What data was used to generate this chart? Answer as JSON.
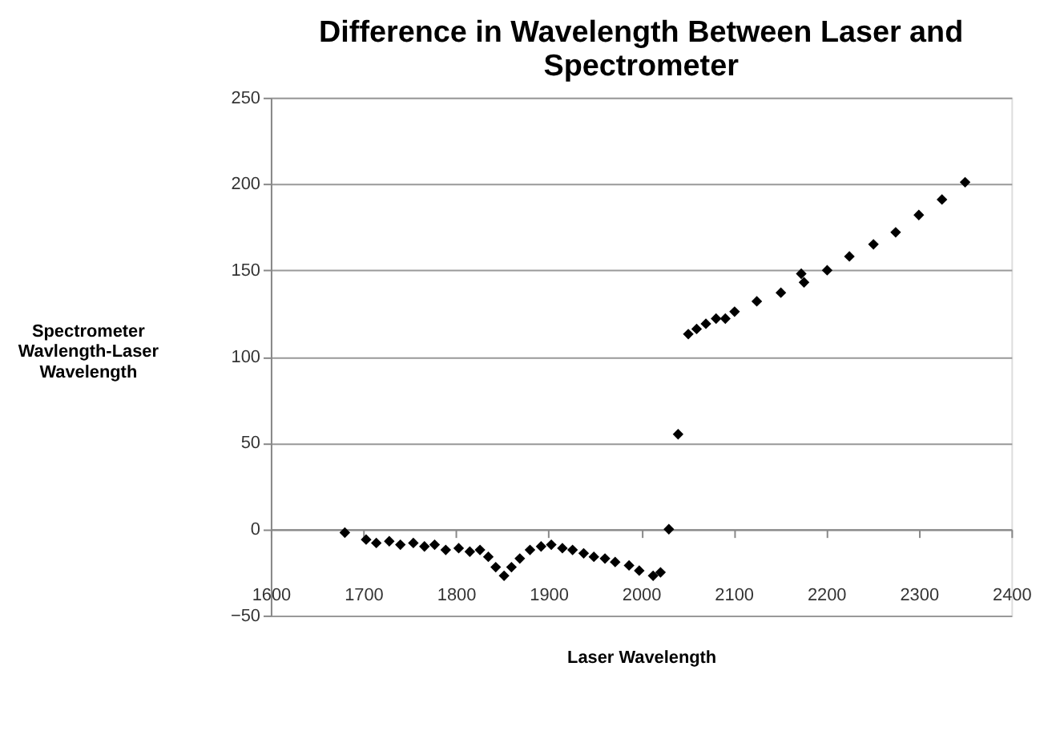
{
  "chart_data": {
    "type": "scatter",
    "title": "Difference in Wavelength Between Laser and Spectrometer",
    "xlabel": "Laser Wavelength",
    "ylabel": "Spectrometer Wavlength-Laser Wavelength",
    "x": [
      1680,
      1703,
      1714,
      1728,
      1740,
      1754,
      1766,
      1777,
      1789,
      1803,
      1815,
      1826,
      1835,
      1843,
      1852,
      1860,
      1869,
      1880,
      1892,
      1903,
      1915,
      1926,
      1938,
      1949,
      1961,
      1972,
      1987,
      1998,
      2013,
      2021,
      2030,
      2040,
      2051,
      2060,
      2070,
      2081,
      2091,
      2101,
      2125,
      2151,
      2173,
      2176,
      2201,
      2225,
      2251,
      2275,
      2300,
      2325,
      2350
    ],
    "series": [
      {
        "color": "#000000",
        "values": [
          -2,
          -6,
          -8,
          -7,
          -9,
          -8,
          -10,
          -9,
          -12,
          -11,
          -13,
          -12,
          -16,
          -22,
          -27,
          -22,
          -17,
          -12,
          -10,
          -9,
          -11,
          -12,
          -14,
          -16,
          -17,
          -19,
          -21,
          -24,
          -27,
          -25,
          0,
          55,
          113,
          116,
          119,
          122,
          122,
          126,
          132,
          137,
          148,
          143,
          150,
          158,
          165,
          172,
          182,
          191,
          201
        ]
      }
    ],
    "xlim": [
      1600,
      2400
    ],
    "xticks": [
      1600,
      1700,
      1800,
      1900,
      2000,
      2100,
      2200,
      2300,
      2400
    ],
    "ylim": [
      -50,
      250
    ],
    "yticks": [
      -50,
      0,
      50,
      100,
      150,
      200,
      250
    ],
    "grid": "y",
    "marker": "diamond",
    "legend": false
  }
}
